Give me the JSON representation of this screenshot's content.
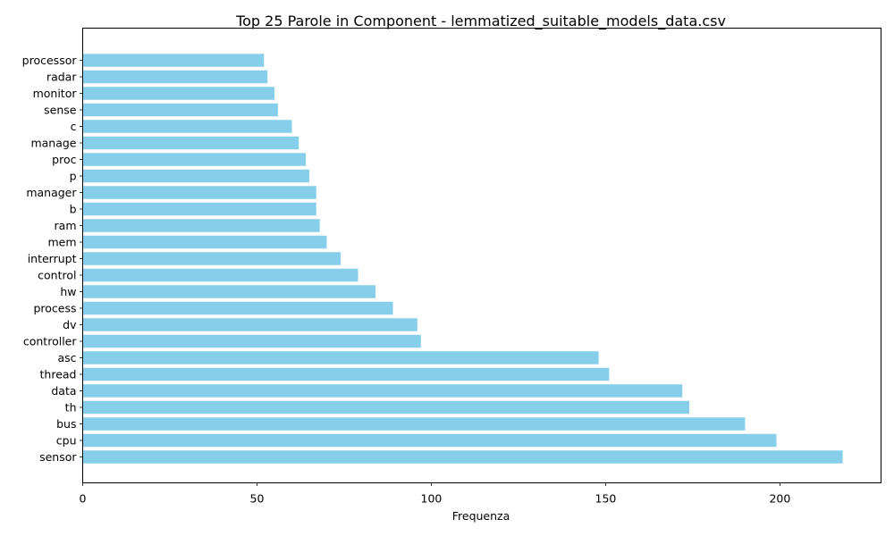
{
  "chart_data": {
    "type": "bar",
    "orientation": "horizontal",
    "title": "Top 25 Parole in Component - lemmatized_suitable_models_data.csv",
    "xlabel": "Frequenza",
    "ylabel": "",
    "xlim": [
      0,
      229
    ],
    "xticks": [
      0,
      50,
      100,
      150,
      200
    ],
    "bar_color": "#87ceeb",
    "grid": false,
    "categories": [
      "sensor",
      "cpu",
      "bus",
      "th",
      "data",
      "thread",
      "asc",
      "controller",
      "dv",
      "process",
      "hw",
      "control",
      "interrupt",
      "mem",
      "ram",
      "b",
      "manager",
      "p",
      "proc",
      "manage",
      "c",
      "sense",
      "monitor",
      "radar",
      "processor"
    ],
    "values": [
      218,
      199,
      190,
      174,
      172,
      151,
      148,
      97,
      96,
      89,
      84,
      79,
      74,
      70,
      68,
      67,
      67,
      65,
      64,
      62,
      60,
      56,
      55,
      53,
      52
    ]
  }
}
